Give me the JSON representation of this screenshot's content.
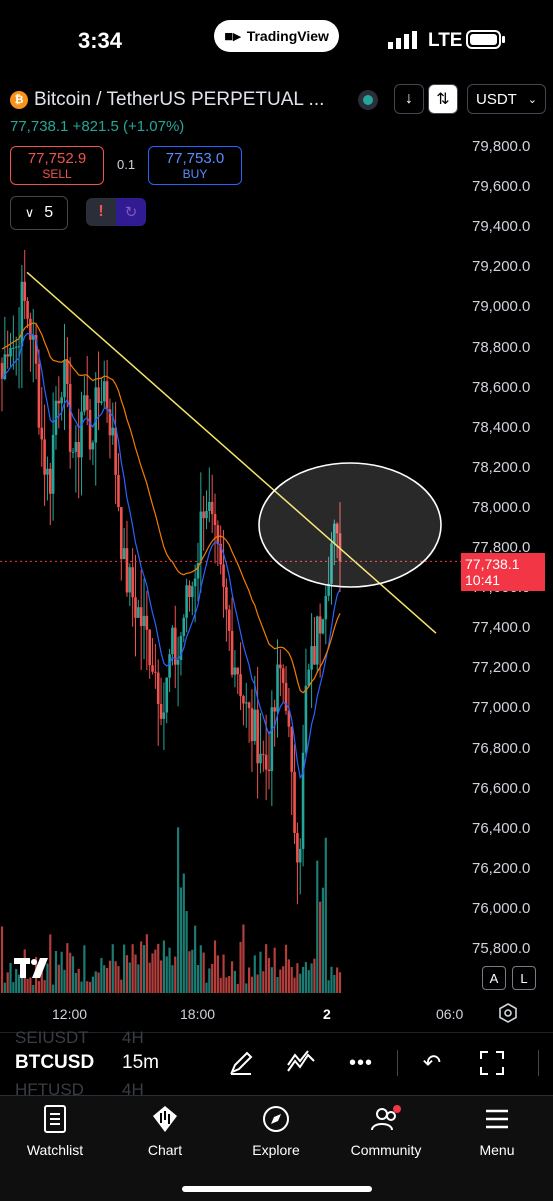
{
  "status_bar": {
    "time": "3:34",
    "app_pill": "TradingView",
    "network": "LTE"
  },
  "header": {
    "title": "Bitcoin / TetherUS PERPETUAL ...",
    "currency": "USDT",
    "price_line": "77,738.1 +821.5 (+1.07%)"
  },
  "trade": {
    "sell_price": "77,752.9",
    "sell_label": "SELL",
    "quantity": "0.1",
    "buy_price": "77,753.0",
    "buy_label": "BUY"
  },
  "indicators_count": "5",
  "axis": {
    "y_ticks": [
      "79,800.0",
      "79,600.0",
      "79,400.0",
      "79,200.0",
      "79,000.0",
      "78,800.0",
      "78,600.0",
      "78,400.0",
      "78,200.0",
      "78,000.0",
      "77,800.0",
      "77,600.0",
      "77,400.0",
      "77,200.0",
      "77,000.0",
      "76,800.0",
      "76,600.0",
      "76,400.0",
      "76,200.0",
      "76,000.0",
      "75,800.0"
    ],
    "x_ticks": [
      "12:00",
      "18:00",
      "2",
      "06:0"
    ],
    "price_tag": "77,738.1",
    "countdown": "10:41",
    "auto_label": "A",
    "log_label": "L"
  },
  "toolbar": {
    "symbol": "BTCUSD",
    "interval": "15m",
    "ghost_top": "SEIUSDT",
    "ghost_top_interval": "4H",
    "ghost_bottom": "HFTUSD",
    "ghost_bottom_interval": "4H"
  },
  "tabs": [
    {
      "label": "Watchlist",
      "icon": "watchlist-icon"
    },
    {
      "label": "Chart",
      "icon": "chart-icon"
    },
    {
      "label": "Explore",
      "icon": "compass-icon"
    },
    {
      "label": "Community",
      "icon": "community-icon"
    },
    {
      "label": "Menu",
      "icon": "menu-icon"
    }
  ],
  "colors": {
    "up": "#26a69a",
    "down": "#ef5350",
    "ma_fast": "#2962ff",
    "ma_slow": "#f57c00",
    "trendline": "#f5e663",
    "price_tag": "#f23645"
  },
  "chart_data": {
    "type": "candlestick",
    "symbol": "BTCUSD",
    "interval": "15m",
    "y_range": [
      75700,
      79900
    ],
    "last_price": 77738.1,
    "close_series": [
      78650,
      78900,
      78780,
      79050,
      78950,
      78700,
      78300,
      78100,
      78550,
      78700,
      78400,
      78200,
      78600,
      78350,
      78500,
      78650,
      78450,
      78150,
      77700,
      77600,
      77500,
      77400,
      77300,
      77150,
      77000,
      77300,
      77250,
      77500,
      77600,
      77800,
      78100,
      77900,
      77700,
      77500,
      77300,
      77200,
      77000,
      76900,
      76850,
      76700,
      76900,
      77200,
      77100,
      76500,
      76300,
      77100,
      77250,
      77450,
      77700,
      77860,
      77738
    ],
    "trendline": {
      "from": {
        "time": "start",
        "price": 79180
      },
      "to": {
        "time": "end",
        "price": 77380
      }
    },
    "moving_averages": [
      "fast",
      "slow"
    ],
    "annotation": "ellipse around latest candles near trendline"
  }
}
